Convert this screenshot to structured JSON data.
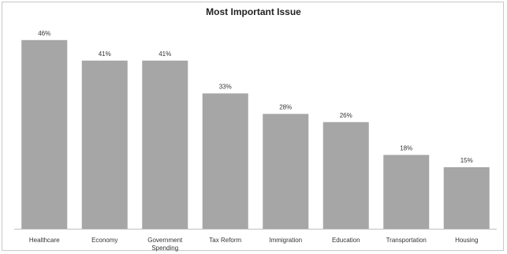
{
  "chart_data": {
    "type": "bar",
    "title": "Most Important Issue",
    "categories": [
      "Healthcare",
      "Economy",
      "Government Spending",
      "Tax Reform",
      "Immigration",
      "Education",
      "Transportation",
      "Housing"
    ],
    "category_lines": [
      [
        "Healthcare"
      ],
      [
        "Economy"
      ],
      [
        "Government",
        "Spending"
      ],
      [
        "Tax Reform"
      ],
      [
        "Immigration"
      ],
      [
        "Education"
      ],
      [
        "Transportation"
      ],
      [
        "Housing"
      ]
    ],
    "values": [
      46,
      41,
      41,
      33,
      28,
      26,
      18,
      15
    ],
    "data_labels": [
      "46%",
      "41%",
      "41%",
      "33%",
      "28%",
      "26%",
      "18%",
      "15%"
    ],
    "xlabel": "",
    "ylabel": "",
    "ylim": [
      0,
      50
    ],
    "grid": false,
    "legend": "none",
    "colors": {
      "bar": "#a6a6a6",
      "axis": "#bfbfbf"
    }
  }
}
